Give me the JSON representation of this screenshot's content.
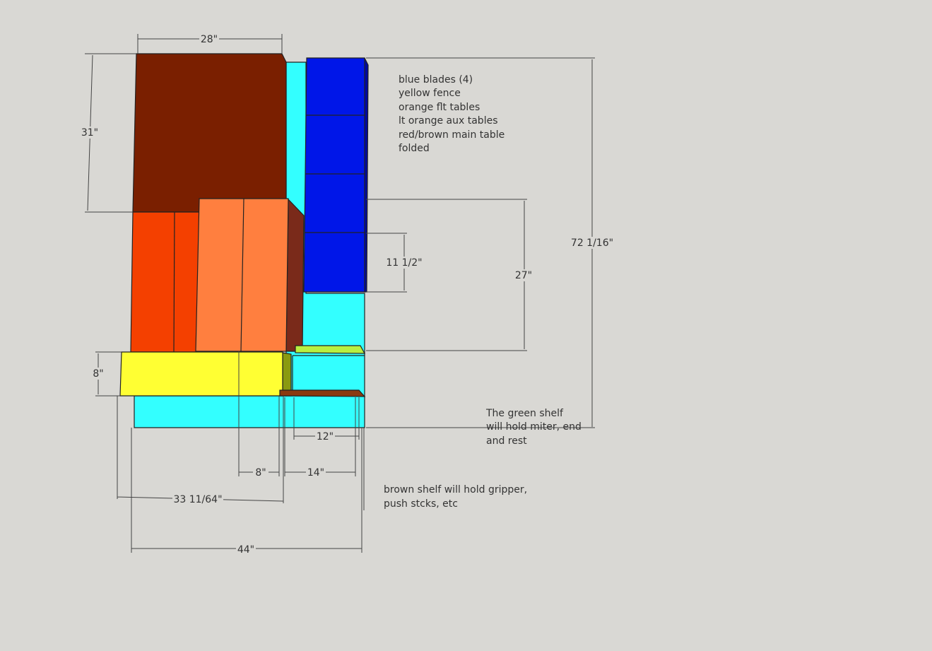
{
  "dimensions": [
    {
      "label": "28\""
    },
    {
      "label": "31\""
    },
    {
      "label": "72 1/16\""
    },
    {
      "label": "27\""
    },
    {
      "label": "11 1/2\""
    },
    {
      "label": "8\""
    },
    {
      "label": "12\""
    },
    {
      "label": "8\""
    },
    {
      "label": "14\""
    },
    {
      "label": "33 11/64\""
    },
    {
      "label": "44\""
    }
  ],
  "notes": {
    "legend": [
      "blue blades (4)",
      "yellow fence",
      "orange flt tables",
      "lt orange aux tables",
      "red/brown main table",
      "folded"
    ],
    "green_shelf": [
      "The green shelf",
      "will hold miter, end",
      "and rest"
    ],
    "brown_shelf": [
      "brown shelf will hold gripper,",
      "push stcks, etc"
    ]
  }
}
